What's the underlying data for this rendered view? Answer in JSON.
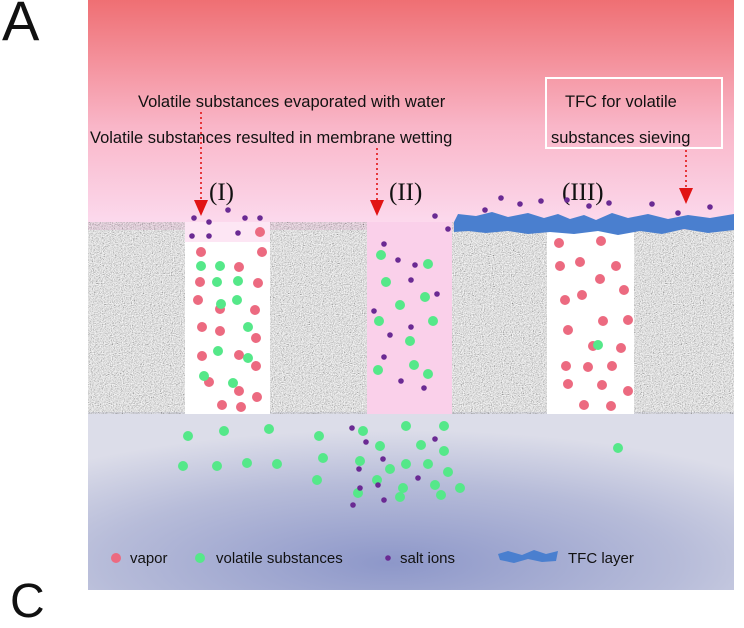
{
  "panel_letter": "A",
  "next_panel_letter": "C",
  "labels": {
    "evaporated": "Volatile substances evaporated with water",
    "wetting": "Volatile substances resulted in membrane wetting",
    "tfc_line1": "TFC for volatile",
    "tfc_line2": "substances sieving"
  },
  "pores": [
    "(I)",
    "(II)",
    "(III)"
  ],
  "legend": {
    "vapor": "vapor",
    "volatile": "volatile substances",
    "salt": "salt ions",
    "tfc": "TFC layer"
  },
  "colors": {
    "vapor": "#ec6a80",
    "volatile": "#55e889",
    "salt": "#6a2a93",
    "tfc": "#4a7fcf",
    "arrow": "#e11414",
    "membrane": "#8f8f8f"
  }
}
